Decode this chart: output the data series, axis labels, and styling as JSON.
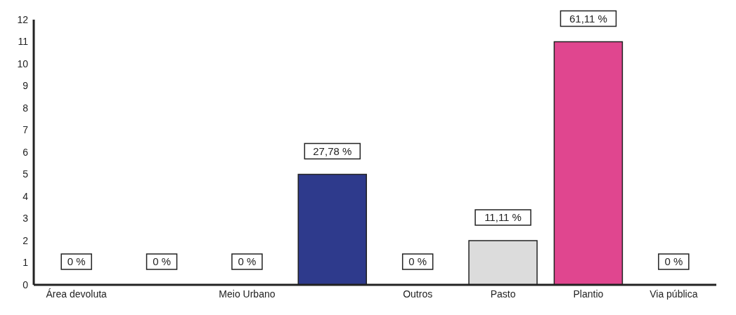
{
  "chart_data": {
    "type": "bar",
    "categories": [
      "Área devoluta",
      null,
      "Meio Urbano",
      null,
      "Outros",
      "Pasto",
      "Plantio",
      "Via pública"
    ],
    "values": [
      0,
      0,
      0,
      5,
      0,
      2,
      11,
      0
    ],
    "colors": [
      "#2e3a8c",
      "#2e3a8c",
      "#2e3a8c",
      "#2e3a8c",
      "#2e3a8c",
      "#dcdcdc",
      "#e0468f",
      "#2e3a8c"
    ],
    "annotations": [
      "0 %",
      "0 %",
      "0 %",
      "27,78 %",
      "0 %",
      "11,11 %",
      "61,11 %",
      "0 %"
    ],
    "ylim": [
      0,
      12
    ],
    "yticks": [
      0,
      1,
      2,
      3,
      4,
      5,
      6,
      7,
      8,
      9,
      10,
      11,
      12
    ],
    "grid": false,
    "legend": false
  }
}
